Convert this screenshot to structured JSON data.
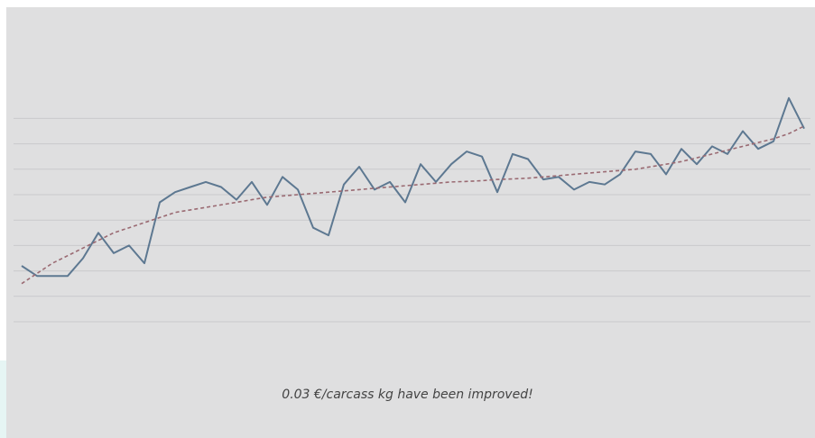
{
  "caption": "0.03 €/carcass kg have been improved!",
  "colors": {
    "background": "#dfdfe0",
    "grid": "#c9c9cc",
    "line": "#5d7891",
    "trend": "#9a6a72"
  },
  "chart_data": {
    "type": "line",
    "title": "",
    "xlabel": "",
    "ylabel": "",
    "grid": true,
    "ylim": [
      0,
      10
    ],
    "x": [
      1,
      2,
      3,
      4,
      5,
      6,
      7,
      8,
      9,
      10,
      11,
      12,
      13,
      14,
      15,
      16,
      17,
      18,
      19,
      20,
      21,
      22,
      23,
      24,
      25,
      26,
      27,
      28,
      29,
      30,
      31,
      32,
      33,
      34,
      35,
      36,
      37,
      38,
      39,
      40,
      41,
      42,
      43,
      44,
      45,
      46,
      47,
      48,
      49,
      50,
      51,
      52
    ],
    "series": [
      {
        "values": [
          2.2,
          1.8,
          1.8,
          1.8,
          2.5,
          3.5,
          2.7,
          3.0,
          2.3,
          4.7,
          5.1,
          5.3,
          5.5,
          5.3,
          4.8,
          5.5,
          4.6,
          5.7,
          5.2,
          3.7,
          3.4,
          5.4,
          6.1,
          5.2,
          5.5,
          4.7,
          6.2,
          5.5,
          6.2,
          6.7,
          6.5,
          5.1,
          6.6,
          6.4,
          5.6,
          5.7,
          5.2,
          5.5,
          5.4,
          5.8,
          6.7,
          6.6,
          5.8,
          6.8,
          6.2,
          6.9,
          6.6,
          7.5,
          6.8,
          7.1,
          8.8,
          7.6
        ]
      },
      {
        "values": [
          1.5,
          1.9,
          2.3,
          2.6,
          2.9,
          3.2,
          3.5,
          3.7,
          3.9,
          4.1,
          4.3,
          4.4,
          4.5,
          4.6,
          4.7,
          4.8,
          4.9,
          4.95,
          5.0,
          5.05,
          5.1,
          5.15,
          5.2,
          5.25,
          5.3,
          5.35,
          5.4,
          5.45,
          5.5,
          5.52,
          5.55,
          5.6,
          5.62,
          5.65,
          5.7,
          5.75,
          5.8,
          5.85,
          5.9,
          5.95,
          6.0,
          6.1,
          6.2,
          6.3,
          6.45,
          6.6,
          6.75,
          6.9,
          7.05,
          7.2,
          7.4,
          7.7
        ]
      }
    ]
  }
}
